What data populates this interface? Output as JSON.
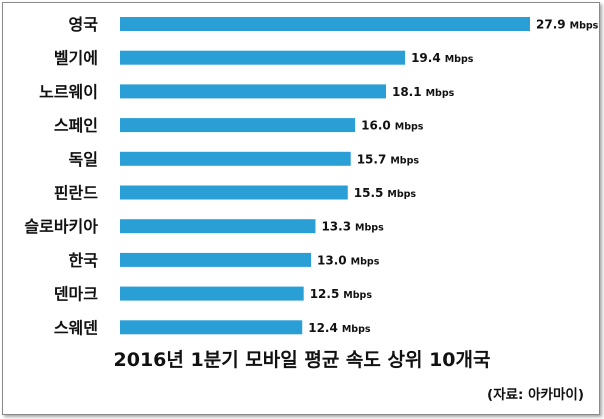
{
  "chart_data": {
    "type": "bar",
    "orientation": "horizontal",
    "title": "2016년 1분기 모바일 평균 속도 상위 10개국",
    "source": "(자료: 아카마이)",
    "unit": "Mbps",
    "categories": [
      "영국",
      "벨기에",
      "노르웨이",
      "스페인",
      "독일",
      "핀란드",
      "슬로바키아",
      "한국",
      "덴마크",
      "스웨덴"
    ],
    "values": [
      27.9,
      19.4,
      18.1,
      16.0,
      15.7,
      15.5,
      13.3,
      13.0,
      12.5,
      12.4
    ],
    "value_labels": [
      "27.9",
      "19.4",
      "18.1",
      "16.0",
      "15.7",
      "15.5",
      "13.3",
      "13.0",
      "12.5",
      "12.4"
    ],
    "bar_color": "#2a9fd6",
    "xlim": [
      0,
      27.9
    ],
    "grid": false,
    "legend": "none"
  }
}
